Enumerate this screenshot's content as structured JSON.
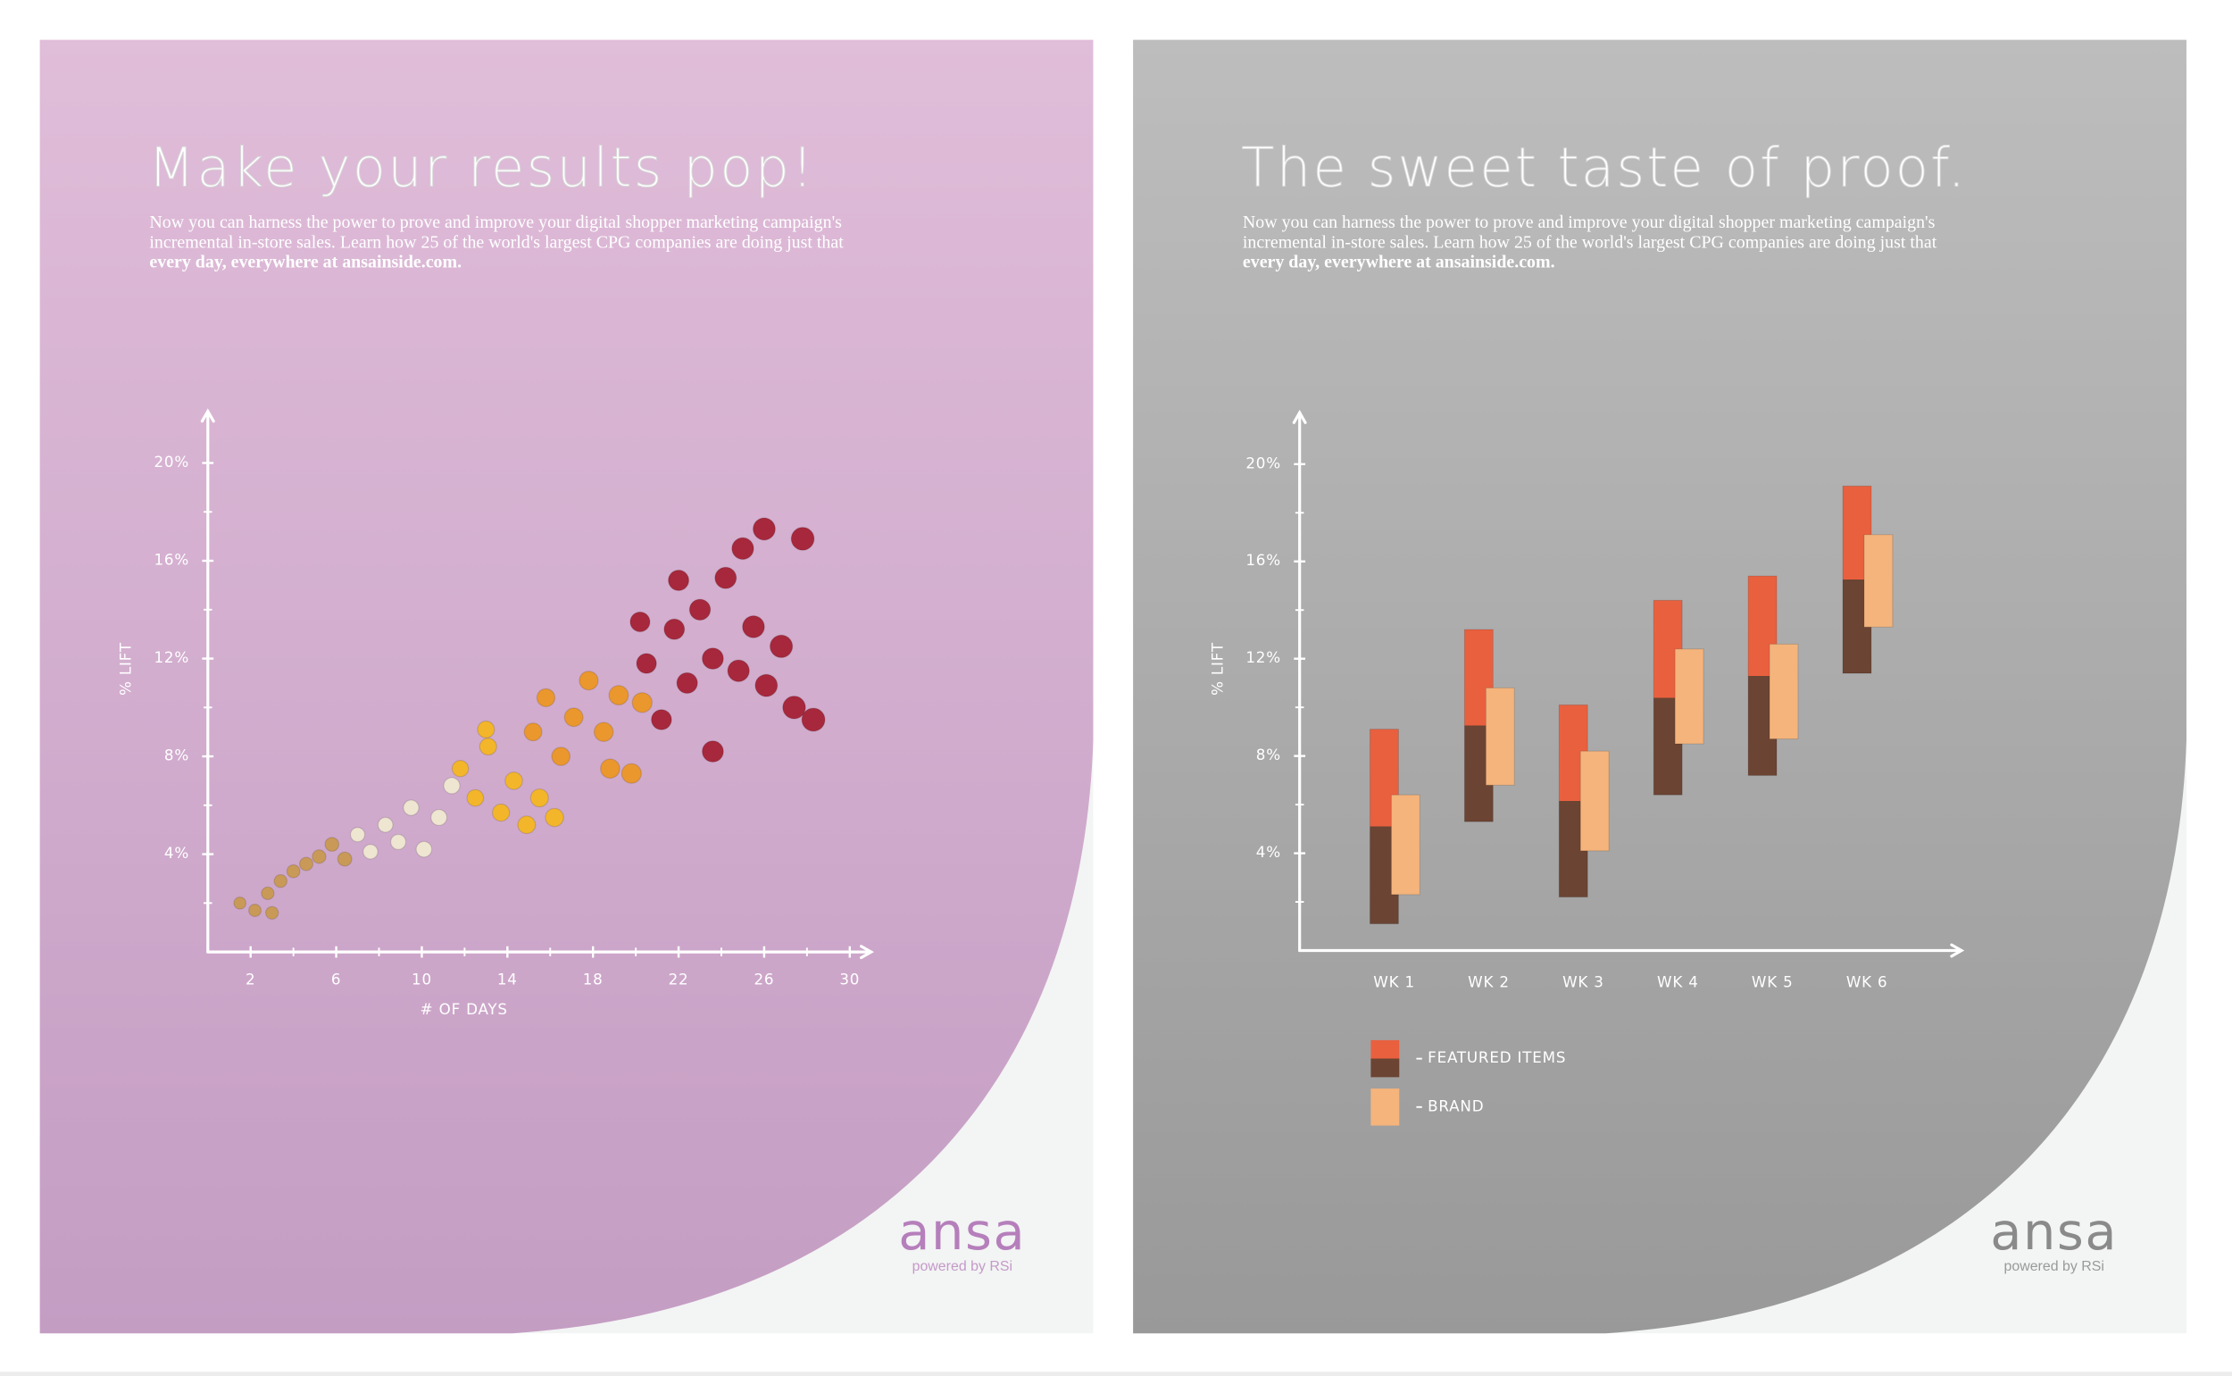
{
  "posters": [
    {
      "title": "Make your results pop!",
      "body": [
        "Now you can harness the power to prove and improve your digital shopper marketing campaign's",
        "incremental in-store sales. Learn how 25 of the world's largest CPG companies are doing just that",
        "every day, everywhere at ansainside.com."
      ],
      "logo": "ansa",
      "logo_sub": "powered by RSi"
    },
    {
      "title": "The sweet taste of proof.",
      "body": [
        "Now you can harness the power to prove and improve your digital shopper marketing campaign's",
        "incremental in-store sales. Learn how 25 of the world's largest CPG companies are doing just that",
        "every day, everywhere at ansainside.com."
      ],
      "logo": "ansa",
      "logo_sub": "powered by RSi"
    }
  ],
  "chart_data": [
    {
      "type": "scatter",
      "x_label": "# OF DAYS",
      "y_label": "% LIFT",
      "x": [
        1.5,
        2.2,
        2.8,
        3.4,
        4.0,
        4.6,
        5.2,
        3.0,
        5.8,
        6.4,
        7.0,
        7.6,
        8.3,
        8.9,
        9.5,
        10.1,
        10.8,
        11.4,
        11.8,
        12.5,
        13.1,
        13.7,
        14.3,
        14.9,
        15.5,
        13.0,
        16.2,
        15.2,
        15.8,
        16.5,
        17.1,
        17.8,
        18.5,
        19.2,
        19.8,
        20.3,
        18.8,
        20.5,
        21.2,
        21.8,
        22.4,
        23.0,
        23.6,
        24.2,
        24.8,
        25.5,
        26.1,
        26.8,
        27.4,
        22.0,
        20.2,
        26.0,
        27.8,
        23.6,
        28.3,
        25.0
      ],
      "values": [
        2.0,
        1.7,
        2.4,
        2.9,
        3.3,
        3.6,
        3.9,
        1.6,
        4.4,
        3.8,
        4.8,
        4.1,
        5.2,
        4.5,
        5.9,
        4.2,
        5.5,
        6.8,
        7.5,
        6.3,
        8.4,
        5.7,
        7.0,
        5.2,
        6.3,
        9.1,
        5.5,
        9.0,
        10.4,
        8.0,
        9.6,
        11.1,
        9.0,
        10.5,
        7.3,
        10.2,
        7.5,
        11.8,
        9.5,
        13.2,
        11.0,
        14.0,
        12.0,
        15.3,
        11.5,
        13.3,
        10.9,
        12.5,
        10.0,
        15.2,
        13.5,
        17.3,
        16.9,
        8.2,
        9.5,
        16.5
      ],
      "colors": [
        "#c99a57",
        "#c99a57",
        "#c99a57",
        "#c99a57",
        "#c99a57",
        "#c99a57",
        "#c99a57",
        "#c99a57",
        "#c99a57",
        "#c99a57",
        "#efe6d2",
        "#efe6d2",
        "#efe6d2",
        "#efe6d2",
        "#efe6d2",
        "#efe6d2",
        "#efe6d2",
        "#efe6d2",
        "#f3b62a",
        "#f3b62a",
        "#f3b62a",
        "#f3b62a",
        "#f3b62a",
        "#f3b62a",
        "#f3b62a",
        "#f3b62a",
        "#f3b62a",
        "#ea972d",
        "#ea972d",
        "#ea972d",
        "#ea972d",
        "#ea972d",
        "#ea972d",
        "#ea972d",
        "#ea972d",
        "#ea972d",
        "#ea972d",
        "#a7283c",
        "#a7283c",
        "#a7283c",
        "#a7283c",
        "#a7283c",
        "#a7283c",
        "#a7283c",
        "#a7283c",
        "#a7283c",
        "#a7283c",
        "#a7283c",
        "#a7283c",
        "#a7283c",
        "#a7283c",
        "#a7283c",
        "#a7283c",
        "#a7283c",
        "#a7283c",
        "#a7283c"
      ],
      "xlim": [
        0,
        31
      ],
      "xticks": [
        2,
        6,
        10,
        14,
        18,
        22,
        26,
        30
      ],
      "x_minor_ticks": [
        4,
        8,
        12,
        16,
        20,
        24,
        28
      ],
      "ylim": [
        0,
        22
      ],
      "yticks": [
        {
          "value": 4,
          "label": "4%"
        },
        {
          "value": 8,
          "label": "8%"
        },
        {
          "value": 12,
          "label": "12%"
        },
        {
          "value": 16,
          "label": "16%"
        },
        {
          "value": 20,
          "label": "20%"
        }
      ],
      "y_minor_ticks": [
        2,
        6,
        10,
        14,
        18
      ]
    },
    {
      "type": "range_bar",
      "y_label": "% LIFT",
      "categories": [
        "WK 1",
        "WK 2",
        "WK 3",
        "WK 4",
        "WK 5",
        "WK 6"
      ],
      "series": [
        {
          "name": "FEATURED ITEMS",
          "color": "#e9603f",
          "color2": "#6b4433",
          "low": [
            1.1,
            5.3,
            2.2,
            6.4,
            7.2,
            11.4
          ],
          "values": [
            9.1,
            13.2,
            10.1,
            14.4,
            15.4,
            19.1
          ]
        },
        {
          "name": "BRAND",
          "color": "#f4b47c",
          "low": [
            2.3,
            6.8,
            4.1,
            8.5,
            8.7,
            13.3
          ],
          "values": [
            6.4,
            10.8,
            8.2,
            12.4,
            12.6,
            17.1
          ]
        }
      ],
      "ylim": [
        0,
        22
      ],
      "yticks": [
        {
          "value": 4,
          "label": "4%"
        },
        {
          "value": 8,
          "label": "8%"
        },
        {
          "value": 12,
          "label": "12%"
        },
        {
          "value": 16,
          "label": "16%"
        },
        {
          "value": 20,
          "label": "20%"
        }
      ],
      "y_minor_ticks": [
        2,
        6,
        10,
        14,
        18
      ]
    }
  ]
}
